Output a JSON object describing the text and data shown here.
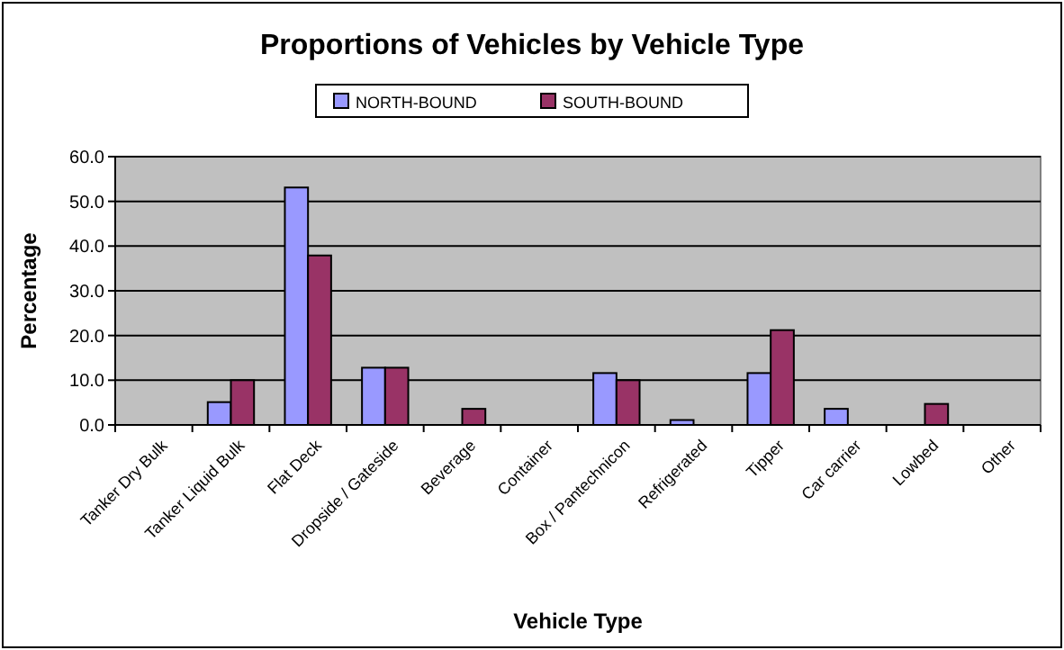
{
  "chart_data": {
    "type": "bar",
    "title": "Proportions of Vehicles by Vehicle Type",
    "xlabel": "Vehicle Type",
    "ylabel": "Percentage",
    "categories": [
      "Tanker Dry Bulk",
      "Tanker Liquid Bulk",
      "Flat Deck",
      "Dropside / Gateside",
      "Beverage",
      "Container",
      "Box / Pantechnicon",
      "Refrigerated",
      "Tipper",
      "Car carrier",
      "Lowbed",
      "Other"
    ],
    "series": [
      {
        "name": "NORTH-BOUND",
        "color": "#9999ff",
        "values": [
          0,
          5.1,
          53.1,
          12.8,
          0,
          0,
          11.6,
          1.1,
          11.6,
          3.6,
          0,
          0
        ]
      },
      {
        "name": "SOUTH-BOUND",
        "color": "#993366",
        "values": [
          0,
          10.0,
          37.9,
          12.8,
          3.6,
          0,
          10.0,
          0,
          21.2,
          0,
          4.7,
          0
        ]
      }
    ],
    "ylim": [
      0,
      60
    ],
    "yticks": [
      {
        "value": 0,
        "label": "0.0"
      },
      {
        "value": 10,
        "label": "10.0"
      },
      {
        "value": 20,
        "label": "20.0"
      },
      {
        "value": 30,
        "label": "30.0"
      },
      {
        "value": 40,
        "label": "40.0"
      },
      {
        "value": 50,
        "label": "50.0"
      },
      {
        "value": 60,
        "label": "60.0"
      }
    ],
    "grid": "y",
    "legend": "top"
  }
}
